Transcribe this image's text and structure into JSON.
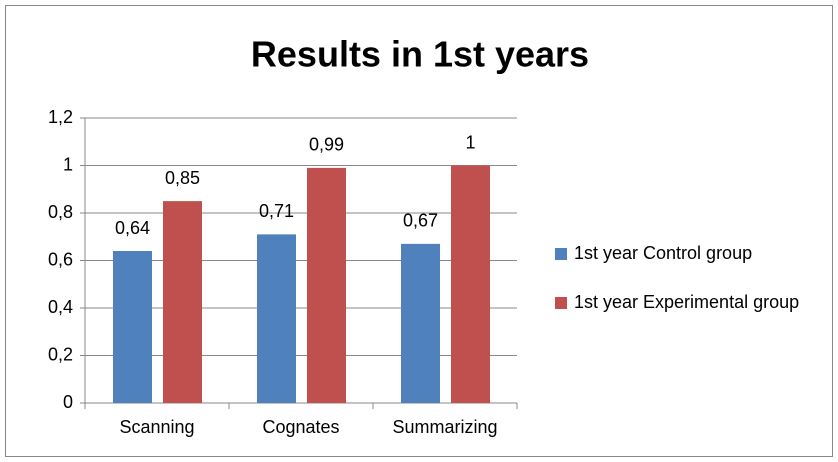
{
  "chart_data": {
    "type": "bar",
    "title": "Results in 1st years",
    "categories": [
      "Scanning",
      "Cognates",
      "Summarizing"
    ],
    "series": [
      {
        "name": "1st year Control group",
        "color": "#4f81bd",
        "values": [
          0.64,
          0.71,
          0.67
        ],
        "value_labels": [
          "0,64",
          "0,71",
          "0,67"
        ]
      },
      {
        "name": "1st year Experimental group",
        "color": "#c0504d",
        "values": [
          0.85,
          0.99,
          1
        ],
        "value_labels": [
          "0,85",
          "0,99",
          "1"
        ]
      }
    ],
    "ylim": [
      0,
      1.2
    ],
    "yticks": [
      0,
      {
        "value": 0.2,
        "label": "0,2"
      },
      {
        "value": 0.4,
        "label": "0,4"
      },
      {
        "value": 0.6,
        "label": "0,6"
      },
      {
        "value": 0.8,
        "label": "0,8"
      },
      1,
      {
        "value": 1.2,
        "label": "1,2"
      }
    ],
    "grid": true,
    "legend": "right"
  }
}
